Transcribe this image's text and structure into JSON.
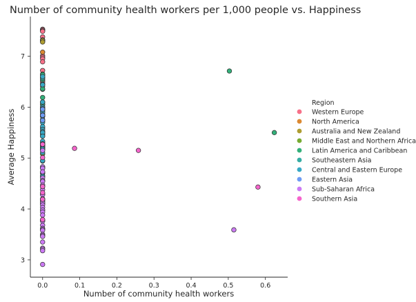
{
  "chart_data": {
    "type": "scatter",
    "title": "Number of community health workers per 1,000 people vs. Happiness",
    "xlabel": "Number of community health workers",
    "ylabel": "Average Happiness",
    "xlim": [
      -0.033,
      0.66
    ],
    "ylim": [
      2.66,
      7.78
    ],
    "xticks": [
      {
        "value": 0.0,
        "label": "0.0"
      },
      {
        "value": 0.1,
        "label": "0.1"
      },
      {
        "value": 0.2,
        "label": "0.2"
      },
      {
        "value": 0.3,
        "label": "0.3"
      },
      {
        "value": 0.4,
        "label": "0.4"
      },
      {
        "value": 0.5,
        "label": "0.5"
      },
      {
        "value": 0.6,
        "label": "0.6"
      }
    ],
    "yticks": [
      {
        "value": 3,
        "label": "3"
      },
      {
        "value": 4,
        "label": "4"
      },
      {
        "value": 5,
        "label": "5"
      },
      {
        "value": 6,
        "label": "6"
      },
      {
        "value": 7,
        "label": "7"
      }
    ],
    "grid": false,
    "legend": {
      "title": "Region",
      "placement": "right",
      "entries": [
        {
          "label": "Western Europe",
          "color": "#f77189"
        },
        {
          "label": "North America",
          "color": "#dc8932"
        },
        {
          "label": "Australia and New Zealand",
          "color": "#ae9d31"
        },
        {
          "label": "Middle East and Northern Africa",
          "color": "#77ab31"
        },
        {
          "label": "Latin America and Caribbean",
          "color": "#33b07a"
        },
        {
          "label": "Southeastern Asia",
          "color": "#36ada4"
        },
        {
          "label": "Central and Eastern Europe",
          "color": "#38a9c5"
        },
        {
          "label": "Eastern Asia",
          "color": "#6e9bf4"
        },
        {
          "label": "Sub-Saharan Africa",
          "color": "#cc7af4"
        },
        {
          "label": "Southern Asia",
          "color": "#f565cc"
        }
      ]
    },
    "series": [
      {
        "name": "Western Europe",
        "x": [
          0,
          0,
          0,
          0,
          0,
          0,
          0,
          0,
          0,
          0,
          0,
          0,
          0,
          0,
          0,
          0,
          0,
          0
        ],
        "y": [
          7.53,
          7.52,
          7.5,
          7.49,
          7.38,
          7.32,
          7.29,
          7.01,
          6.98,
          6.95,
          6.89,
          6.72,
          6.62,
          6.52,
          6.49,
          6.41,
          5.84,
          5.2
        ]
      },
      {
        "name": "North America",
        "x": [
          0,
          0
        ],
        "y": [
          7.32,
          7.08
        ]
      },
      {
        "name": "Australia and New Zealand",
        "x": [
          0,
          0
        ],
        "y": [
          7.31,
          7.28
        ]
      },
      {
        "name": "Middle East and Northern Africa",
        "x": [
          0,
          0,
          0,
          0,
          0,
          0,
          0,
          0,
          0,
          0,
          0,
          0,
          0,
          0,
          0,
          0
        ],
        "y": [
          6.65,
          6.58,
          6.45,
          6.35,
          6.05,
          5.95,
          5.82,
          5.59,
          5.5,
          5.46,
          5.28,
          5.23,
          5.17,
          5.08,
          4.7,
          3.98
        ]
      },
      {
        "name": "Latin America and Caribbean",
        "x": [
          0,
          0,
          0,
          0,
          0,
          0,
          0,
          0,
          0,
          0,
          0,
          0,
          0,
          0,
          0,
          0,
          0,
          0,
          0,
          0,
          0.503,
          0.624
        ],
        "y": [
          6.64,
          6.58,
          6.54,
          6.45,
          6.36,
          6.19,
          6.09,
          6.05,
          6.0,
          5.97,
          5.96,
          5.94,
          5.91,
          5.85,
          5.49,
          5.43,
          5.25,
          5.18,
          4.65,
          3.6,
          6.71,
          5.5
        ]
      },
      {
        "name": "Southeastern Asia",
        "x": [
          0,
          0,
          0,
          0,
          0,
          0,
          0,
          0,
          0
        ],
        "y": [
          6.57,
          6.1,
          5.96,
          5.52,
          5.31,
          5.21,
          4.94,
          4.55,
          4.17
        ]
      },
      {
        "name": "Central and Eastern Europe",
        "x": [
          0,
          0,
          0,
          0,
          0,
          0,
          0,
          0,
          0,
          0,
          0,
          0,
          0,
          0,
          0,
          0,
          0,
          0,
          0,
          0,
          0,
          0,
          0,
          0,
          0,
          0,
          0,
          0,
          0
        ],
        "y": [
          6.6,
          6.44,
          6.1,
          6.0,
          5.97,
          5.89,
          5.85,
          5.83,
          5.82,
          5.76,
          5.73,
          5.7,
          5.62,
          5.56,
          5.52,
          5.5,
          5.43,
          5.33,
          5.28,
          5.27,
          5.23,
          5.19,
          5.18,
          5.11,
          4.95,
          4.8,
          4.71,
          4.64,
          4.1
        ]
      },
      {
        "name": "Eastern Asia",
        "x": [
          0,
          0,
          0,
          0,
          0,
          0
        ],
        "y": [
          5.96,
          5.84,
          5.74,
          5.27,
          5.27,
          4.82
        ]
      },
      {
        "name": "Sub-Saharan Africa",
        "x": [
          0,
          0,
          0,
          0,
          0,
          0,
          0,
          0,
          0,
          0,
          0,
          0,
          0,
          0,
          0,
          0,
          0,
          0,
          0,
          0,
          0,
          0,
          0,
          0,
          0,
          0,
          0,
          0,
          0,
          0,
          0,
          0,
          0,
          0,
          0,
          0,
          0.515
        ],
        "y": [
          5.15,
          4.83,
          4.8,
          4.73,
          4.61,
          4.56,
          4.54,
          4.47,
          4.44,
          4.29,
          4.28,
          4.18,
          4.14,
          4.12,
          4.08,
          4.03,
          3.98,
          3.94,
          3.88,
          3.79,
          3.77,
          3.76,
          3.68,
          3.62,
          3.6,
          3.58,
          3.5,
          3.48,
          3.46,
          3.35,
          3.23,
          3.21,
          3.18,
          2.91,
          4.38,
          4.2,
          3.59
        ]
      },
      {
        "name": "Southern Asia",
        "x": [
          0,
          0,
          0,
          0,
          0,
          0,
          0.086,
          0.258,
          0.58
        ],
        "y": [
          5.27,
          5.01,
          4.44,
          4.32,
          4.19,
          3.79,
          5.19,
          5.15,
          4.43
        ]
      }
    ]
  }
}
